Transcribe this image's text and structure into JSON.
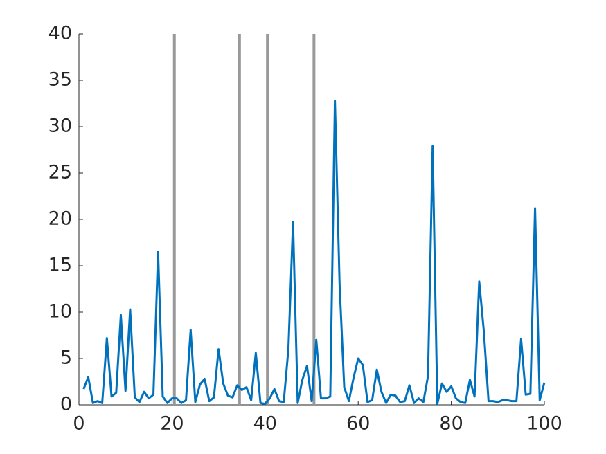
{
  "chart_data": {
    "type": "line",
    "x": [
      1,
      2,
      3,
      4,
      5,
      6,
      7,
      8,
      9,
      10,
      11,
      12,
      13,
      14,
      15,
      16,
      17,
      18,
      19,
      20,
      21,
      22,
      23,
      24,
      25,
      26,
      27,
      28,
      29,
      30,
      31,
      32,
      33,
      34,
      35,
      36,
      37,
      38,
      39,
      40,
      41,
      42,
      43,
      44,
      45,
      46,
      47,
      48,
      49,
      50,
      51,
      52,
      53,
      54,
      55,
      56,
      57,
      58,
      59,
      60,
      61,
      62,
      63,
      64,
      65,
      66,
      67,
      68,
      69,
      70,
      71,
      72,
      73,
      74,
      75,
      76,
      77,
      78,
      79,
      80,
      81,
      82,
      83,
      84,
      85,
      86,
      87,
      88,
      89,
      90,
      91,
      92,
      93,
      94,
      95,
      96,
      97,
      98,
      99,
      100
    ],
    "series": [
      {
        "color": "#0072bd",
        "values": [
          1.7,
          3.0,
          0.2,
          0.4,
          0.2,
          7.2,
          0.9,
          1.3,
          9.7,
          1.5,
          10.3,
          0.8,
          0.3,
          1.4,
          0.7,
          1.1,
          16.5,
          0.9,
          0.2,
          0.7,
          0.7,
          0.2,
          0.5,
          8.1,
          0.3,
          2.2,
          2.8,
          0.4,
          0.8,
          6.0,
          2.3,
          1.0,
          0.8,
          2.1,
          1.6,
          1.9,
          0.5,
          5.6,
          0.2,
          0.1,
          0.7,
          1.7,
          0.4,
          0.3,
          6.0,
          19.7,
          0.2,
          2.7,
          4.2,
          0.4,
          7.0,
          0.7,
          0.7,
          0.9,
          32.8,
          13.0,
          1.9,
          0.4,
          2.9,
          5.0,
          4.3,
          0.3,
          0.5,
          3.8,
          1.4,
          0.2,
          1.1,
          1.0,
          0.3,
          0.4,
          2.1,
          0.2,
          0.7,
          0.3,
          3.1,
          27.9,
          0.1,
          2.3,
          1.4,
          2.0,
          0.7,
          0.3,
          0.2,
          2.7,
          0.9,
          13.3,
          7.9,
          0.4,
          0.4,
          0.3,
          0.5,
          0.5,
          0.4,
          0.4,
          7.1,
          1.1,
          1.2,
          21.2,
          0.5,
          2.4
        ]
      }
    ],
    "vlines": [
      20.5,
      34.5,
      40.5,
      50.5
    ],
    "vline_color": "#999999",
    "xlim": [
      0,
      100
    ],
    "xticks": [
      0,
      20,
      40,
      60,
      80,
      100
    ],
    "ylim": [
      0,
      40
    ],
    "yticks": [
      0,
      5,
      10,
      15,
      20,
      25,
      30,
      35,
      40
    ]
  }
}
